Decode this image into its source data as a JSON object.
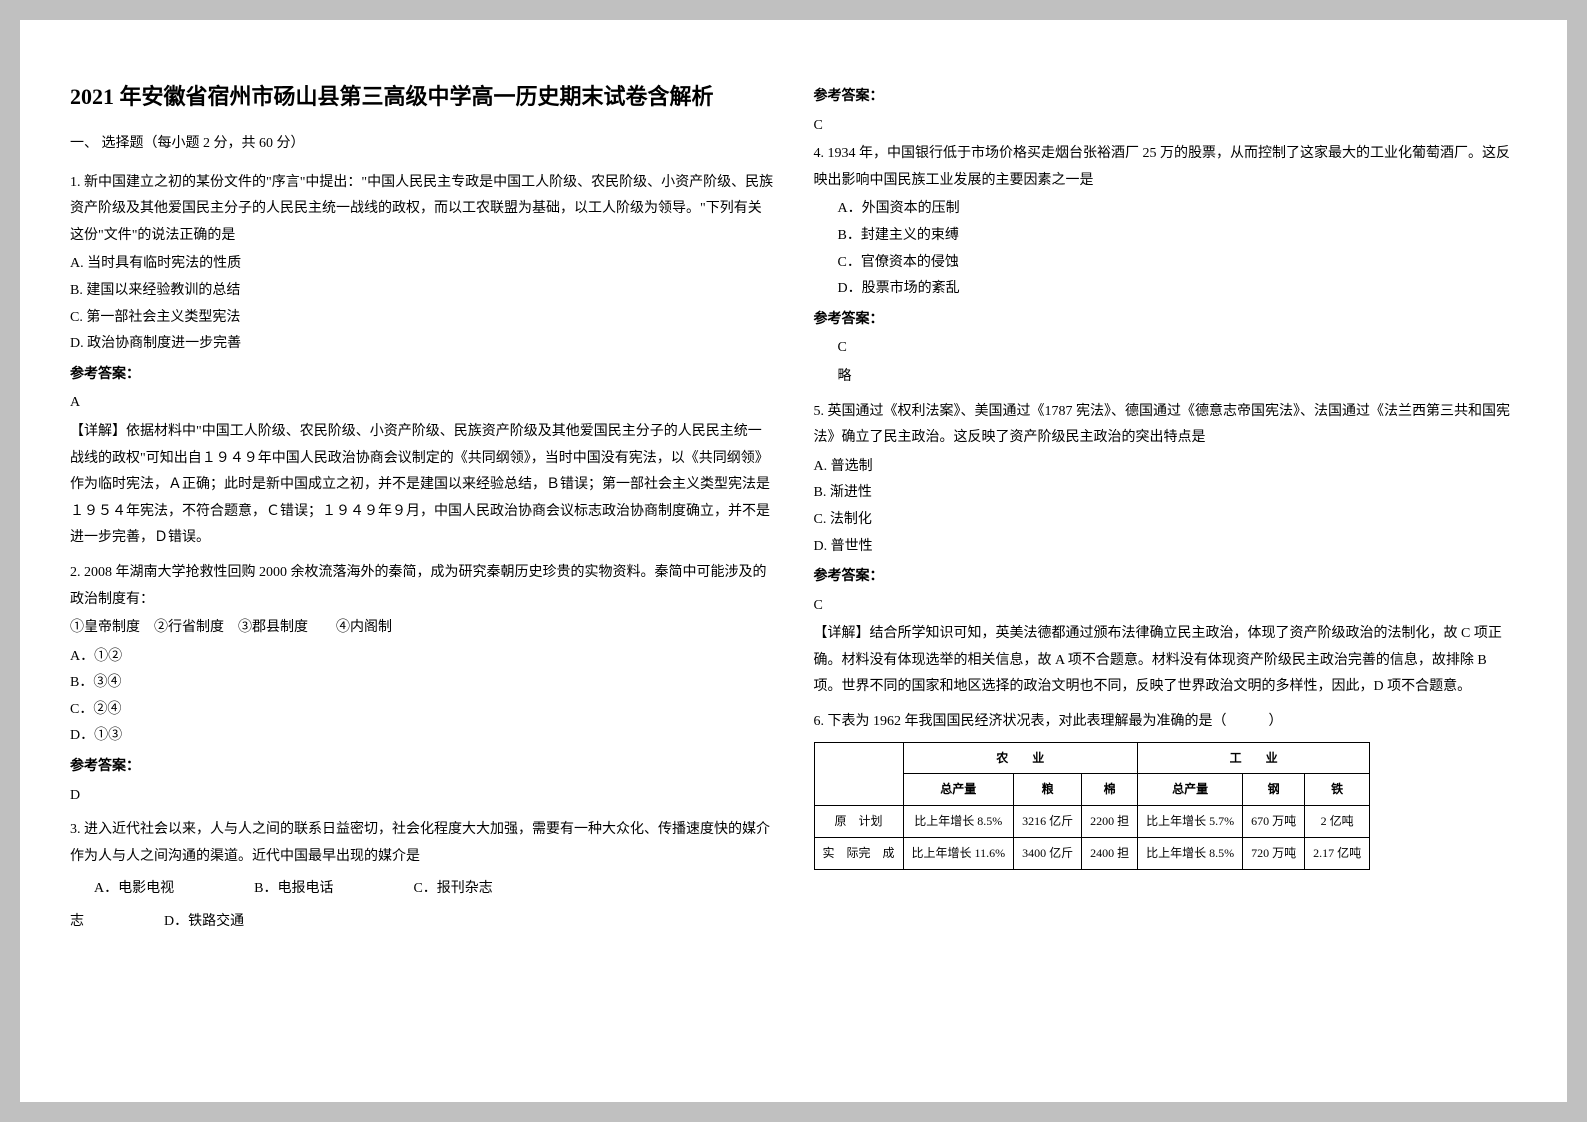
{
  "title": "2021 年安徽省宿州市砀山县第三高级中学高一历史期末试卷含解析",
  "section1_head": "一、 选择题（每小题 2 分，共 60 分）",
  "answer_label": "参考答案：",
  "q1": {
    "body": "1. 新中国建立之初的某份文件的\"序言\"中提出：\"中国人民民主专政是中国工人阶级、农民阶级、小资产阶级、民族资产阶级及其他爱国民主分子的人民民主统一战线的政权，而以工农联盟为基础，以工人阶级为领导。\"下列有关这份\"文件\"的说法正确的是",
    "A": "A. 当时具有临时宪法的性质",
    "B": "B. 建国以来经验教训的总结",
    "C": "C. 第一部社会主义类型宪法",
    "D": "D. 政治协商制度进一步完善",
    "ans": "A",
    "detail": "【详解】依据材料中\"中国工人阶级、农民阶级、小资产阶级、民族资产阶级及其他爱国民主分子的人民民主统一战线的政权\"可知出自１９４９年中国人民政治协商会议制定的《共同纲领》，当时中国没有宪法，以《共同纲领》作为临时宪法，Ａ正确；此时是新中国成立之初，并不是建国以来经验总结，Ｂ错误；第一部社会主义类型宪法是１９５４年宪法，不符合题意，Ｃ错误；１９４９年９月，中国人民政治协商会议标志政治协商制度确立，并不是进一步完善，Ｄ错误。"
  },
  "q2": {
    "body": "2. 2008 年湖南大学抢救性回购 2000 余枚流落海外的秦简，成为研究秦朝历史珍贵的实物资料。秦简中可能涉及的政治制度有：",
    "choices_line": "①皇帝制度　②行省制度　③郡县制度　　④内阁制",
    "A": "A．①②",
    "B": "B．③④",
    "C": "C．②④",
    "D": "D．①③",
    "ans": "D"
  },
  "q3": {
    "body": "3. 进入近代社会以来，人与人之间的联系日益密切，社会化程度大大加强，需要有一种大众化、传播速度快的媒介作为人与人之间沟通的渠道。近代中国最早出现的媒介是",
    "A": "A．电影电视",
    "B": "B．电报电话",
    "C": "C．报刊杂志",
    "D": "D．铁路交通",
    "ans": "C"
  },
  "q4": {
    "body": "4. 1934 年，中国银行低于市场价格买走烟台张裕酒厂 25 万的股票，从而控制了这家最大的工业化葡萄酒厂。这反映出影响中国民族工业发展的主要因素之一是",
    "A": "A．外国资本的压制",
    "B": "B．封建主义的束缚",
    "C": "C．官僚资本的侵蚀",
    "D": "D．股票市场的紊乱",
    "ans": "C",
    "extra": "略"
  },
  "q5": {
    "body": "5. 英国通过《权利法案》、美国通过《1787 宪法》、德国通过《德意志帝国宪法》、法国通过《法兰西第三共和国宪法》确立了民主政治。这反映了资产阶级民主政治的突出特点是",
    "A": "A. 普选制",
    "B": "B. 渐进性",
    "C": "C. 法制化",
    "D": "D. 普世性",
    "ans": "C",
    "detail": "【详解】结合所学知识可知，英美法德都通过颁布法律确立民主政治，体现了资产阶级政治的法制化，故 C 项正确。材料没有体现选举的相关信息，故 A 项不合题意。材料没有体现资产阶级民主政治完善的信息，故排除 B 项。世界不同的国家和地区选择的政治文明也不同，反映了世界政治文明的多样性，因此，D 项不合题意。"
  },
  "q6": {
    "body": "6. 下表为 1962 年我国国民经济状况表，对此表理解最为准确的是（　　　）",
    "table": {
      "head_agri": "农　　业",
      "head_ind": "工　　业",
      "sub": [
        "总产量",
        "粮",
        "棉",
        "总产量",
        "钢",
        "铁"
      ],
      "row1_label": "原　计划",
      "row1": [
        "比上年增长 8.5%",
        "3216 亿斤",
        "2200 担",
        "比上年增长 5.7%",
        "670 万吨",
        "2 亿吨"
      ],
      "row2_label": "实　际完　成",
      "row2": [
        "比上年增长 11.6%",
        "3400 亿斤",
        "2400 担",
        "比上年增长 8.5%",
        "720 万吨",
        "2.17 亿吨"
      ]
    }
  }
}
